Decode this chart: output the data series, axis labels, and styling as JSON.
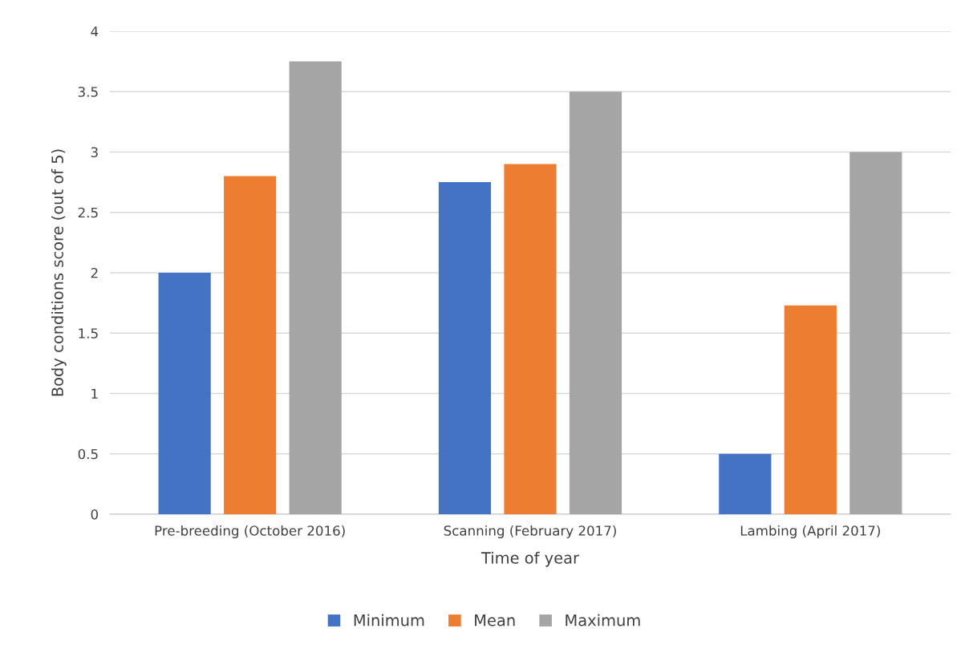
{
  "chart_data": {
    "type": "bar",
    "xlabel": "Time of year",
    "ylabel": "Body conditions score (out of 5)",
    "categories": [
      "Pre-breeding (October 2016)",
      "Scanning (February 2017)",
      "Lambing (April 2017)"
    ],
    "series": [
      {
        "name": "Minimum",
        "color": "#4472c4",
        "values": [
          2,
          2.75,
          0.5
        ]
      },
      {
        "name": "Mean",
        "color": "#ed7d31",
        "values": [
          2.8,
          2.9,
          1.73
        ]
      },
      {
        "name": "Maximum",
        "color": "#a5a5a5",
        "values": [
          3.75,
          3.5,
          3
        ]
      }
    ],
    "ylim": [
      0,
      4
    ],
    "yticks": [
      0,
      0.5,
      1,
      1.5,
      2,
      2.5,
      3,
      3.5,
      4
    ],
    "grid": "y",
    "legend": "bottom"
  }
}
